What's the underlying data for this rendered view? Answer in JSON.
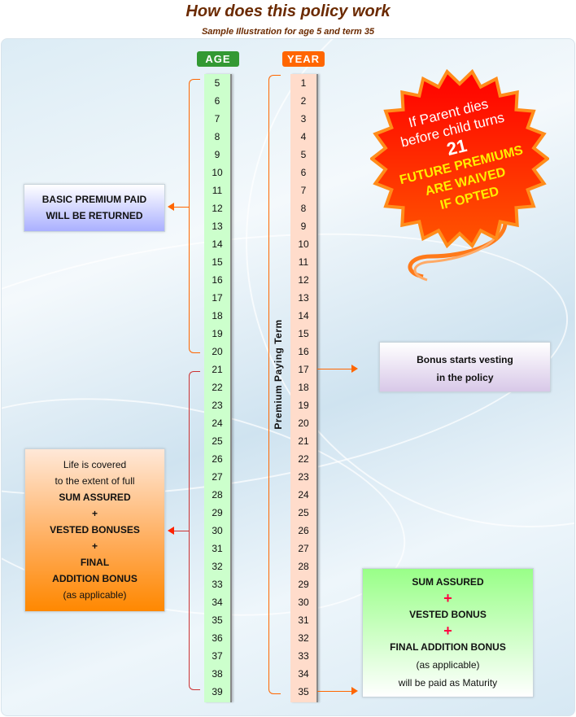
{
  "title": "How does this policy work",
  "subtitle": "Sample Illustration for age 5 and term 35",
  "age_header": "AGE",
  "year_header": "YEAR",
  "ages": [
    "5",
    "6",
    "7",
    "8",
    "9",
    "10",
    "11",
    "12",
    "13",
    "14",
    "15",
    "16",
    "17",
    "18",
    "19",
    "20",
    "21",
    "22",
    "23",
    "24",
    "25",
    "26",
    "27",
    "28",
    "29",
    "30",
    "31",
    "32",
    "33",
    "34",
    "35",
    "36",
    "37",
    "38",
    "39"
  ],
  "years": [
    "1",
    "2",
    "3",
    "4",
    "5",
    "6",
    "7",
    "8",
    "9",
    "10",
    "11",
    "12",
    "13",
    "14",
    "15",
    "16",
    "17",
    "18",
    "19",
    "20",
    "21",
    "22",
    "23",
    "24",
    "25",
    "26",
    "27",
    "28",
    "29",
    "30",
    "31",
    "32",
    "33",
    "34",
    "35"
  ],
  "premium_term_label": "Premium Paying Term",
  "basic_premium": {
    "line1": "BASIC PREMIUM PAID",
    "line2": "WILL BE RETURNED"
  },
  "life_cover": {
    "l1": "Life is covered",
    "l2": "to the extent of full",
    "l3": "SUM ASSURED",
    "p1": "+",
    "l4": "VESTED BONUSES",
    "p2": "+",
    "l5": "FINAL",
    "l6": "ADDITION BONUS",
    "l7": "(as applicable)"
  },
  "bonus_vesting": {
    "line1": "Bonus starts vesting",
    "line2": "in the policy"
  },
  "maturity": {
    "l1": "SUM ASSURED",
    "p1": "+",
    "l2": "VESTED BONUS",
    "p2": "+",
    "l3": "FINAL ADDITION BONUS",
    "l4": "(as applicable)",
    "l5": "will be paid as Maturity"
  },
  "burst": {
    "l1": "If Parent dies",
    "l2": "before child turns",
    "num": "21",
    "l3": "FUTURE PREMIUMS",
    "l4": "ARE WAIVED",
    "l5": "IF OPTED"
  },
  "colors": {
    "age_header": "#339933",
    "year_header": "#ff6600",
    "age_col": "#ccffcc",
    "year_col": "#ffdccb",
    "burst": "#ff1a00",
    "accent": "#ff6600"
  }
}
